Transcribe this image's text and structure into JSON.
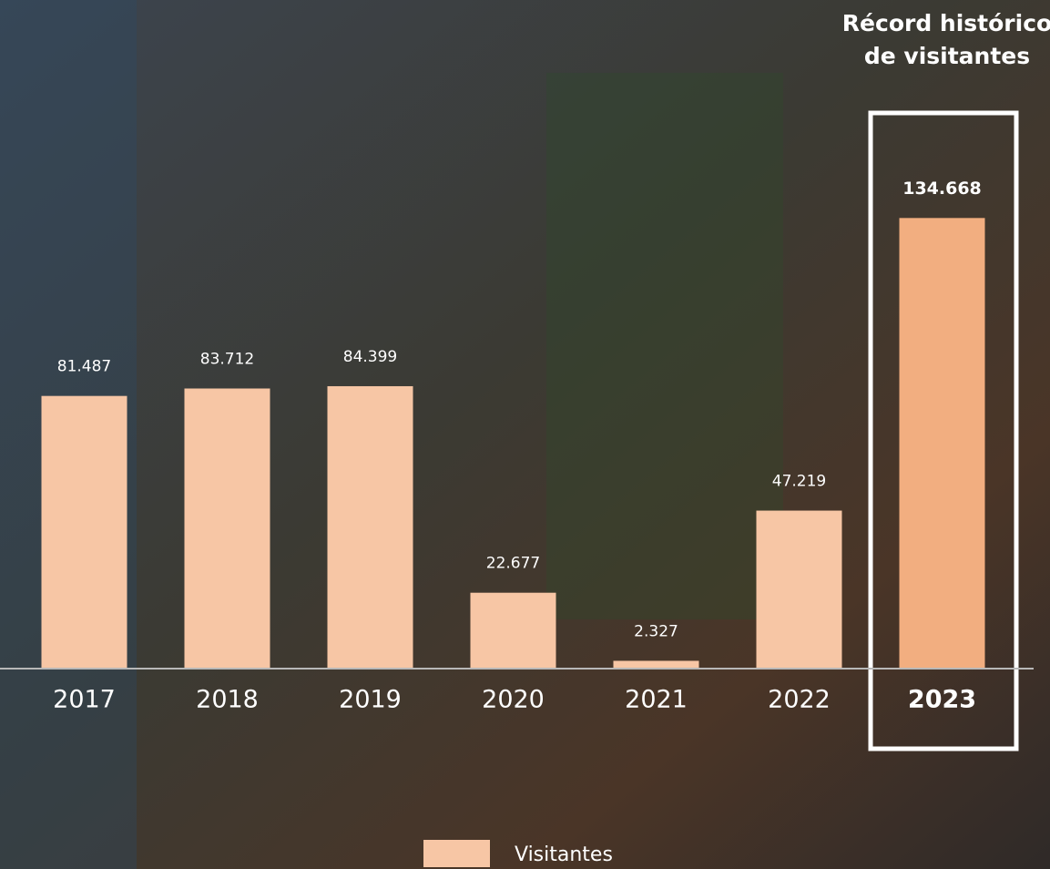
{
  "chart_data": {
    "type": "bar",
    "annotation": "Récord histórico de visitantes",
    "categories": [
      "2017",
      "2018",
      "2019",
      "2020",
      "2021",
      "2022",
      "2023"
    ],
    "series": [
      {
        "name": "Visitantes",
        "color": "#f7c6a5",
        "values": [
          81487,
          83712,
          84399,
          22677,
          2327,
          47219,
          134668
        ],
        "value_labels": [
          "81.487",
          "83.712",
          "84.399",
          "22.677",
          "2.327",
          "47.219",
          "134.668"
        ]
      }
    ],
    "ylim": [
      0,
      150000
    ],
    "highlight": {
      "index": 6,
      "color": "#f2ae80"
    },
    "legend": "bottom"
  }
}
